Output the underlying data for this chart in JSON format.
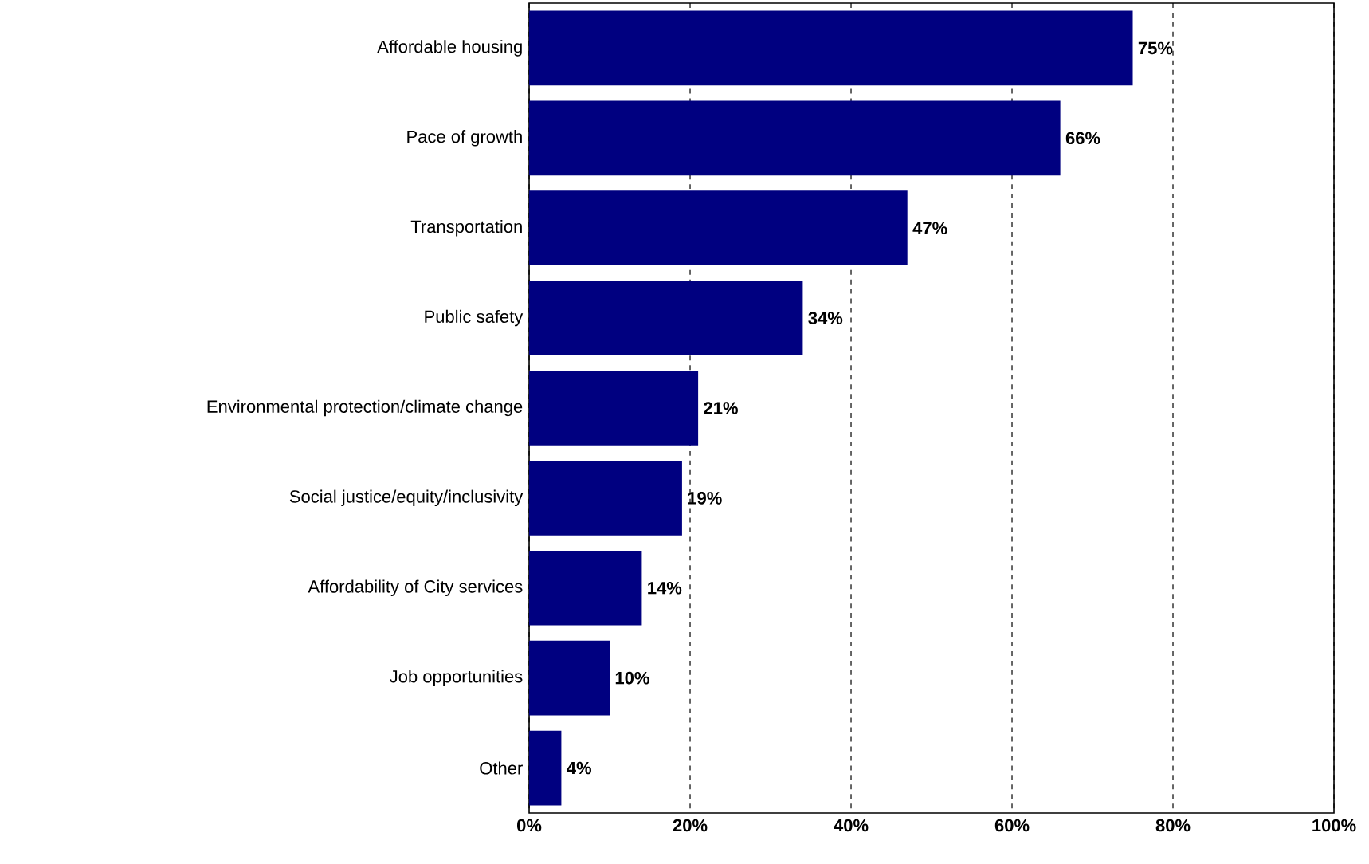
{
  "chart_data": {
    "type": "bar",
    "orientation": "horizontal",
    "categories": [
      "Affordable housing",
      "Pace of growth",
      "Transportation",
      "Public safety",
      "Environmental protection/climate change",
      "Social justice/equity/inclusivity",
      "Affordability of City services",
      "Job opportunities",
      "Other"
    ],
    "values": [
      75,
      66,
      47,
      34,
      21,
      19,
      14,
      10,
      4
    ],
    "value_labels": [
      "75%",
      "66%",
      "47%",
      "34%",
      "21%",
      "19%",
      "14%",
      "10%",
      "4%"
    ],
    "color": "#000080",
    "xlim": [
      0,
      100
    ],
    "xticks": [
      {
        "value": 0,
        "label": "0%"
      },
      {
        "value": 20,
        "label": "20%"
      },
      {
        "value": 40,
        "label": "40%"
      },
      {
        "value": 60,
        "label": "60%"
      },
      {
        "value": 80,
        "label": "80%"
      },
      {
        "value": 100,
        "label": "100%"
      }
    ],
    "grid": "x"
  }
}
